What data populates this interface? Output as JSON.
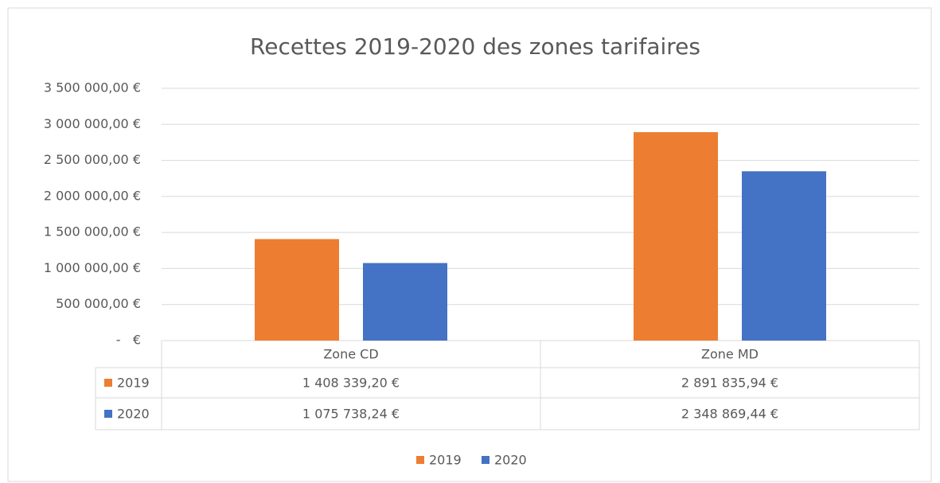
{
  "chart_data": {
    "type": "bar",
    "title": "Recettes 2019-2020 des zones tarifaires",
    "categories": [
      "Zone CD",
      "Zone MD"
    ],
    "series": [
      {
        "name": "2019",
        "color": "#ED7D31",
        "values": [
          1408339.2,
          2891835.94
        ],
        "value_labels": [
          "1 408 339,20 €",
          "2 891 835,94 €"
        ]
      },
      {
        "name": "2020",
        "color": "#4472C4",
        "values": [
          1075738.24,
          2348869.44
        ],
        "value_labels": [
          "1 075 738,24 €",
          "2 348 869,44 €"
        ]
      }
    ],
    "ylim": [
      0,
      3500000
    ],
    "yticks": [
      {
        "value": 0,
        "label": "-   €"
      },
      {
        "value": 500000,
        "label": "500 000,00 €"
      },
      {
        "value": 1000000,
        "label": "1 000 000,00 €"
      },
      {
        "value": 1500000,
        "label": "1 500 000,00 €"
      },
      {
        "value": 2000000,
        "label": "2 000 000,00 €"
      },
      {
        "value": 2500000,
        "label": "2 500 000,00 €"
      },
      {
        "value": 3000000,
        "label": "3 000 000,00 €"
      },
      {
        "value": 3500000,
        "label": "3 500 000,00 €"
      }
    ],
    "grid": true,
    "legend": "bottom"
  }
}
